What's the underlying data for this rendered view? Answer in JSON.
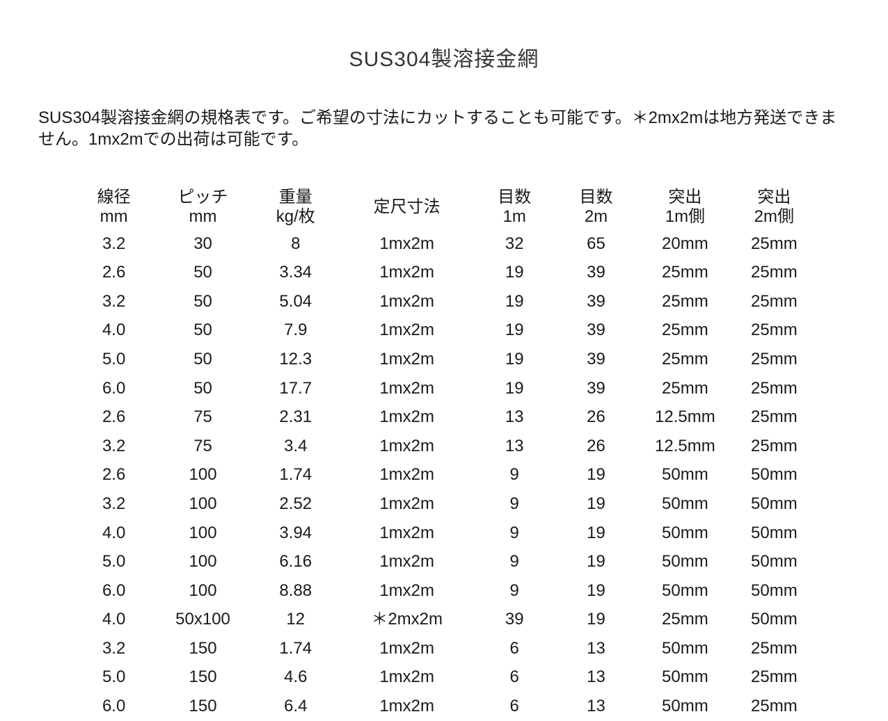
{
  "title": "SUS304製溶接金網",
  "description": "SUS304製溶接金網の規格表です。ご希望の寸法にカットすることも可能です。＊2mx2mは地方発送できません。1mx2mでの出荷は可能です。",
  "table": {
    "columns": [
      {
        "line1": "線径",
        "line2": "mm"
      },
      {
        "line1": "ピッチ",
        "line2": "mm"
      },
      {
        "line1": "重量",
        "line2": "kg/枚"
      },
      {
        "line1": "定尺寸法",
        "line2": ""
      },
      {
        "line1": "目数",
        "line2": "1m"
      },
      {
        "line1": "目数",
        "line2": "2m"
      },
      {
        "line1": "突出",
        "line2": "1m側"
      },
      {
        "line1": "突出",
        "line2": "2m側"
      }
    ],
    "rows": [
      [
        "3.2",
        "30",
        "8",
        "1mx2m",
        "32",
        "65",
        "20mm",
        "25mm"
      ],
      [
        "2.6",
        "50",
        "3.34",
        "1mx2m",
        "19",
        "39",
        "25mm",
        "25mm"
      ],
      [
        "3.2",
        "50",
        "5.04",
        "1mx2m",
        "19",
        "39",
        "25mm",
        "25mm"
      ],
      [
        "4.0",
        "50",
        "7.9",
        "1mx2m",
        "19",
        "39",
        "25mm",
        "25mm"
      ],
      [
        "5.0",
        "50",
        "12.3",
        "1mx2m",
        "19",
        "39",
        "25mm",
        "25mm"
      ],
      [
        "6.0",
        "50",
        "17.7",
        "1mx2m",
        "19",
        "39",
        "25mm",
        "25mm"
      ],
      [
        "2.6",
        "75",
        "2.31",
        "1mx2m",
        "13",
        "26",
        "12.5mm",
        "25mm"
      ],
      [
        "3.2",
        "75",
        "3.4",
        "1mx2m",
        "13",
        "26",
        "12.5mm",
        "25mm"
      ],
      [
        "2.6",
        "100",
        "1.74",
        "1mx2m",
        "9",
        "19",
        "50mm",
        "50mm"
      ],
      [
        "3.2",
        "100",
        "2.52",
        "1mx2m",
        "9",
        "19",
        "50mm",
        "50mm"
      ],
      [
        "4.0",
        "100",
        "3.94",
        "1mx2m",
        "9",
        "19",
        "50mm",
        "50mm"
      ],
      [
        "5.0",
        "100",
        "6.16",
        "1mx2m",
        "9",
        "19",
        "50mm",
        "50mm"
      ],
      [
        "6.0",
        "100",
        "8.88",
        "1mx2m",
        "9",
        "19",
        "50mm",
        "50mm"
      ],
      [
        "4.0",
        "50x100",
        "12",
        "＊2mx2m",
        "39",
        "19",
        "25mm",
        "50mm"
      ],
      [
        "3.2",
        "150",
        "1.74",
        "1mx2m",
        "6",
        "13",
        "50mm",
        "25mm"
      ],
      [
        "5.0",
        "150",
        "4.6",
        "1mx2m",
        "6",
        "13",
        "50mm",
        "25mm"
      ],
      [
        "6.0",
        "150",
        "6.4",
        "1mx2m",
        "6",
        "13",
        "50mm",
        "25mm"
      ]
    ],
    "col_widths": [
      "11%",
      "13%",
      "12%",
      "18%",
      "11%",
      "11%",
      "13%",
      "11%"
    ],
    "text_color": "#1a1a1a",
    "background_color": "#ffffff",
    "font_size_pt": 18
  }
}
